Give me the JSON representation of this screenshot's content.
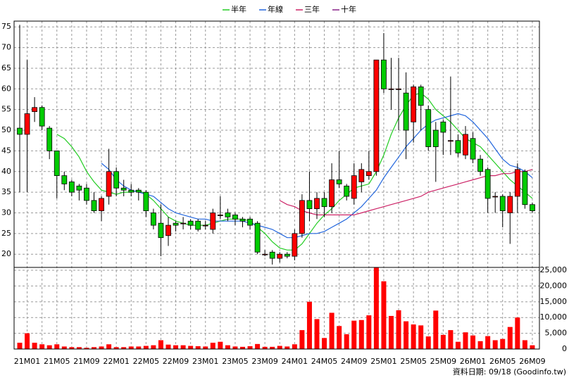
{
  "chart_data": {
    "type": "candlestick",
    "categories": [
      null,
      "21M01",
      null,
      null,
      null,
      "21M05",
      null,
      null,
      null,
      "21M09",
      null,
      null,
      null,
      "22M01",
      null,
      null,
      null,
      "22M05",
      null,
      null,
      null,
      "22M09",
      null,
      null,
      null,
      "23M01",
      null,
      null,
      null,
      "23M05",
      null,
      null,
      null,
      "23M09",
      null,
      null,
      null,
      "24M01",
      null,
      null,
      null,
      "24M05",
      null,
      null,
      null,
      "24M09",
      null,
      null,
      null,
      "25M01",
      null,
      null,
      null,
      "25M05",
      null,
      null,
      null,
      "25M09",
      null,
      null,
      null,
      "26M01",
      null,
      null,
      null,
      "26M05",
      null,
      null,
      null,
      "26M09"
    ],
    "open": [
      50.5,
      49,
      54.5,
      55.5,
      50.5,
      45,
      39,
      37.5,
      36.5,
      36,
      33,
      30.5,
      34,
      40,
      36,
      35.5,
      35.5,
      35,
      30,
      27.5,
      24.5,
      27.5,
      27.5,
      28,
      28,
      27,
      26,
      29.5,
      30,
      29.5,
      28.5,
      28.5,
      27.5,
      20,
      20.5,
      19,
      20,
      19.5,
      25,
      33,
      31,
      33.5,
      31.5,
      38,
      36.5,
      33.5,
      37.5,
      39,
      40,
      67,
      60,
      60,
      59,
      52,
      60.5,
      55,
      50,
      52,
      47.5,
      47.5,
      44,
      48,
      43,
      40.5,
      34,
      34,
      30,
      34,
      40,
      32
    ],
    "high": [
      75.5,
      67,
      58,
      56,
      51,
      45,
      40,
      38,
      37,
      37,
      35,
      34,
      45.5,
      41,
      38,
      37,
      36,
      35.5,
      31,
      32,
      29,
      28,
      29,
      28.5,
      28.5,
      28,
      31,
      34,
      31,
      30,
      29,
      29,
      28,
      21,
      21,
      20.5,
      20.5,
      26,
      34.5,
      40,
      35,
      35,
      42,
      45,
      37,
      42,
      42,
      45,
      67,
      73.5,
      67.5,
      67.5,
      64,
      61,
      61,
      56,
      52,
      52.5,
      63,
      49,
      51,
      49.5,
      44,
      41,
      35,
      34.5,
      35,
      42,
      40.5,
      32.5
    ],
    "low": [
      35,
      35,
      52,
      50,
      43,
      33.5,
      35.5,
      34,
      33,
      32,
      30,
      28,
      32,
      34,
      34,
      34,
      33,
      29,
      26,
      19.5,
      22,
      25.5,
      26,
      26,
      25.5,
      26,
      25,
      28.5,
      28,
      27,
      26.5,
      26,
      20,
      19.5,
      17.5,
      18,
      19,
      18.5,
      24,
      28,
      28.5,
      29,
      30,
      36,
      33,
      32,
      35,
      38,
      39,
      59,
      55,
      50,
      43,
      47,
      50,
      45,
      37.5,
      44,
      44,
      43.5,
      43,
      42,
      39,
      30,
      30,
      26.5,
      22.5,
      30,
      31,
      30
    ],
    "close": [
      49,
      54,
      55.5,
      51,
      45,
      39,
      37,
      35,
      35.5,
      33,
      30.5,
      33.5,
      40,
      36,
      35.5,
      35,
      35,
      30.5,
      27,
      24,
      27,
      27,
      27.5,
      27,
      26,
      27,
      30,
      29.5,
      29,
      28.5,
      28,
      27,
      20.5,
      20,
      19,
      20,
      19.5,
      25,
      33,
      31,
      33.5,
      31.5,
      38,
      37,
      34,
      39,
      40.5,
      40,
      67,
      60,
      60,
      60,
      50,
      60.5,
      56,
      46,
      46,
      49.5,
      47.5,
      44.5,
      49,
      43,
      40,
      33.5,
      34,
      30.5,
      34,
      40.5,
      32,
      30.5
    ],
    "up_color": "#ff0000",
    "down_color": "#00cc00",
    "ylim": [
      16.8,
      76.4
    ],
    "yticks": [
      20,
      25,
      30,
      35,
      40,
      45,
      50,
      55,
      60,
      65,
      70,
      75
    ],
    "grid": true,
    "series": [
      {
        "name": "半年",
        "color": "#22cc22",
        "values": [
          null,
          null,
          null,
          null,
          null,
          49,
          48,
          46,
          43.5,
          40,
          37.5,
          35.5,
          35,
          34.5,
          35,
          35,
          35.5,
          34.5,
          33,
          31,
          29,
          28,
          27.5,
          27,
          27,
          27,
          27.5,
          28,
          28.5,
          28.5,
          28.5,
          28,
          26.5,
          25,
          23,
          21.5,
          21,
          21,
          22.5,
          25,
          27.5,
          29.5,
          31,
          33,
          34.5,
          36,
          36.5,
          37,
          40,
          44,
          49,
          53,
          56,
          58.5,
          59,
          57.5,
          55,
          53.5,
          52,
          50,
          48,
          47,
          46,
          44,
          42,
          40,
          38,
          36.5,
          35,
          33.5
        ]
      },
      {
        "name": "年線",
        "color": "#2266dd",
        "values": [
          null,
          null,
          null,
          null,
          null,
          null,
          null,
          null,
          null,
          null,
          null,
          42,
          40.5,
          38,
          36.5,
          35.5,
          35,
          34.5,
          34,
          32.5,
          31,
          30,
          29.5,
          29,
          28.5,
          28.5,
          28,
          28,
          28,
          28,
          28,
          27.5,
          27,
          26.5,
          26,
          25,
          24,
          24,
          24.5,
          25,
          25,
          25.5,
          26.5,
          27.5,
          28.5,
          30,
          31.5,
          33.5,
          35.5,
          38.5,
          41,
          43.5,
          46,
          48,
          50,
          51.5,
          52.5,
          53,
          53.5,
          54,
          53.5,
          52,
          50,
          48,
          45.5,
          43,
          41.5,
          41,
          40,
          38.5
        ]
      },
      {
        "name": "三年",
        "color": "#cc2266",
        "values": [
          null,
          null,
          null,
          null,
          null,
          null,
          null,
          null,
          null,
          null,
          null,
          null,
          null,
          null,
          null,
          null,
          null,
          null,
          null,
          null,
          null,
          null,
          null,
          null,
          null,
          null,
          null,
          null,
          null,
          null,
          null,
          null,
          null,
          null,
          null,
          33,
          32,
          31.5,
          30.5,
          30,
          29.5,
          29.5,
          29.5,
          29.5,
          29.5,
          29.5,
          30,
          30.5,
          31,
          31.5,
          32,
          32.5,
          33,
          33.5,
          34,
          35,
          35.5,
          36,
          36.5,
          37,
          37.5,
          38,
          38.5,
          39,
          39,
          39.5,
          39.5,
          40,
          40,
          40.5
        ]
      },
      {
        "name": "十年",
        "color": "#882288",
        "values": [
          null,
          null,
          null,
          null,
          null,
          null,
          null,
          null,
          null,
          null,
          null,
          null,
          null,
          null,
          null,
          null,
          null,
          null,
          null,
          null,
          null,
          null,
          null,
          null,
          null,
          null,
          null,
          null,
          null,
          null,
          null,
          null,
          null,
          null,
          null,
          null,
          null,
          null,
          null,
          null,
          null,
          null,
          null,
          null,
          null,
          null,
          null,
          null,
          null,
          null,
          null,
          null,
          null,
          null,
          null,
          null,
          null,
          null,
          null,
          null,
          null,
          null,
          null,
          null,
          null,
          null,
          null,
          null,
          null,
          null
        ]
      }
    ],
    "volume": {
      "values": [
        2000,
        5000,
        2000,
        1500,
        1200,
        1500,
        800,
        600,
        600,
        400,
        600,
        800,
        1500,
        600,
        600,
        800,
        800,
        1000,
        1200,
        2800,
        1400,
        1200,
        1200,
        1000,
        900,
        800,
        2000,
        2300,
        1200,
        800,
        700,
        900,
        1600,
        700,
        700,
        1000,
        800,
        1500,
        6000,
        15000,
        9500,
        3500,
        11500,
        7300,
        4700,
        9000,
        9200,
        10700,
        25800,
        21500,
        10500,
        12300,
        8800,
        7800,
        7500,
        4000,
        12200,
        4500,
        6000,
        2300,
        5300,
        4300,
        2500,
        4100,
        2800,
        3200,
        7000,
        10000,
        2800,
        1200
      ],
      "color": "#ff0000",
      "ylim": [
        0,
        25900
      ],
      "yticks": [
        0,
        {
          "value": 5000,
          "label": "5,000"
        },
        {
          "value": 10000,
          "label": "10,000"
        },
        {
          "value": 15000,
          "label": "15,000"
        },
        {
          "value": 20000,
          "label": "20,000"
        },
        {
          "value": 25000,
          "label": "25,000"
        }
      ]
    },
    "footer": "資料日期: 09/18 (Goodinfo.tw)"
  }
}
